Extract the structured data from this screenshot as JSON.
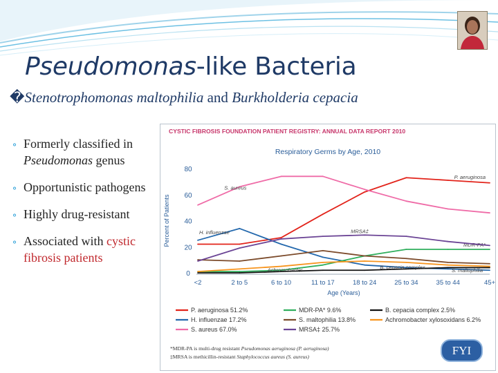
{
  "slide": {
    "title_italic": "Pseudomonas",
    "title_rest": "-like Bacteria",
    "subtitle_bullet": "�",
    "subtitle_species1": "Stenotrophomonas maltophilia",
    "subtitle_and": " and ",
    "subtitle_species2": "Burkholderia cepacia",
    "bullet_marker": "⚬",
    "bullets": [
      {
        "text": "Formerly classified in ",
        "italic": "Pseudomonas",
        "after": " genus"
      },
      {
        "text": "Opportunistic pathogens"
      },
      {
        "text": "Highly drug-resistant"
      },
      {
        "text": "Associated with ",
        "red": "cystic fibrosis patients"
      }
    ],
    "fyi_label": "FYI"
  },
  "chart_data": {
    "type": "line",
    "header": "CYSTIC FIBROSIS FOUNDATION PATIENT REGISTRY: ANNUAL DATA REPORT 2010",
    "title": "Respiratory Germs by Age, 2010",
    "xlabel": "Age (Years)",
    "ylabel": "Percent of Patients",
    "categories": [
      "<2",
      "2 to 5",
      "6 to 10",
      "11 to 17",
      "18 to 24",
      "25 to 34",
      "35 to 44",
      "45+"
    ],
    "yticks": [
      0,
      20,
      40,
      60,
      80
    ],
    "ylim": [
      0,
      80
    ],
    "series": [
      {
        "name": "P. aeruginosa",
        "legend": "P. aeruginosa 51.2%",
        "label": "P. aeruginosa",
        "color": "#e2231a",
        "values": [
          22,
          22,
          27,
          45,
          62,
          73,
          71,
          69
        ]
      },
      {
        "name": "H. influenzae",
        "legend": "H. influenzae 17.2%",
        "label": "H. influenzae",
        "color": "#2368ad",
        "values": [
          25,
          34,
          22,
          12,
          6,
          4,
          3,
          2
        ]
      },
      {
        "name": "S. aureus",
        "legend": "S. aureus 67.0%",
        "label": "S. aureus",
        "color": "#ef6ba7",
        "values": [
          52,
          66,
          74,
          74,
          64,
          55,
          49,
          46
        ]
      },
      {
        "name": "MDR-PA*",
        "legend": "MDR-PA* 9.6%",
        "label": "MDR-PA*",
        "color": "#2fae5c",
        "values": [
          1,
          1,
          2,
          6,
          13,
          18,
          18,
          18
        ]
      },
      {
        "name": "S. maltophilia",
        "legend": "S. maltophilia 13.8%",
        "label": "S. maltophilia",
        "color": "#7b4a2a",
        "values": [
          10,
          9,
          13,
          17,
          13,
          11,
          8,
          7
        ]
      },
      {
        "name": "MRSA‡",
        "legend": "MRSA‡ 25.7%",
        "label": "MRSA‡",
        "color": "#6b4495",
        "values": [
          9,
          19,
          26,
          28,
          29,
          28,
          24,
          21
        ]
      },
      {
        "name": "B. cepacia complex",
        "legend": "B. cepacia complex 2.5%",
        "label": "B. cepacia complex",
        "color": "#111111",
        "values": [
          0,
          0,
          1,
          2,
          2,
          3,
          4,
          4
        ]
      },
      {
        "name": "Achromobacter xylosoxidans",
        "legend": "Achromobacter xylosoxidans 6.2%",
        "label": "Achromobacter",
        "color": "#f7941d",
        "values": [
          1,
          3,
          5,
          8,
          9,
          8,
          6,
          5
        ]
      }
    ],
    "footnotes": [
      {
        "prefix": "*MDR-PA is multi-drug resistant ",
        "italic": "Pseudomonas aeruginosa (P. aeruginosa)",
        "suffix": ""
      },
      {
        "prefix": "‡MRSA is methicillin-resistant ",
        "italic": "Staphylococcus aureus (S. aureus)",
        "suffix": ""
      }
    ],
    "grid": false,
    "legend_position": "bottom"
  }
}
